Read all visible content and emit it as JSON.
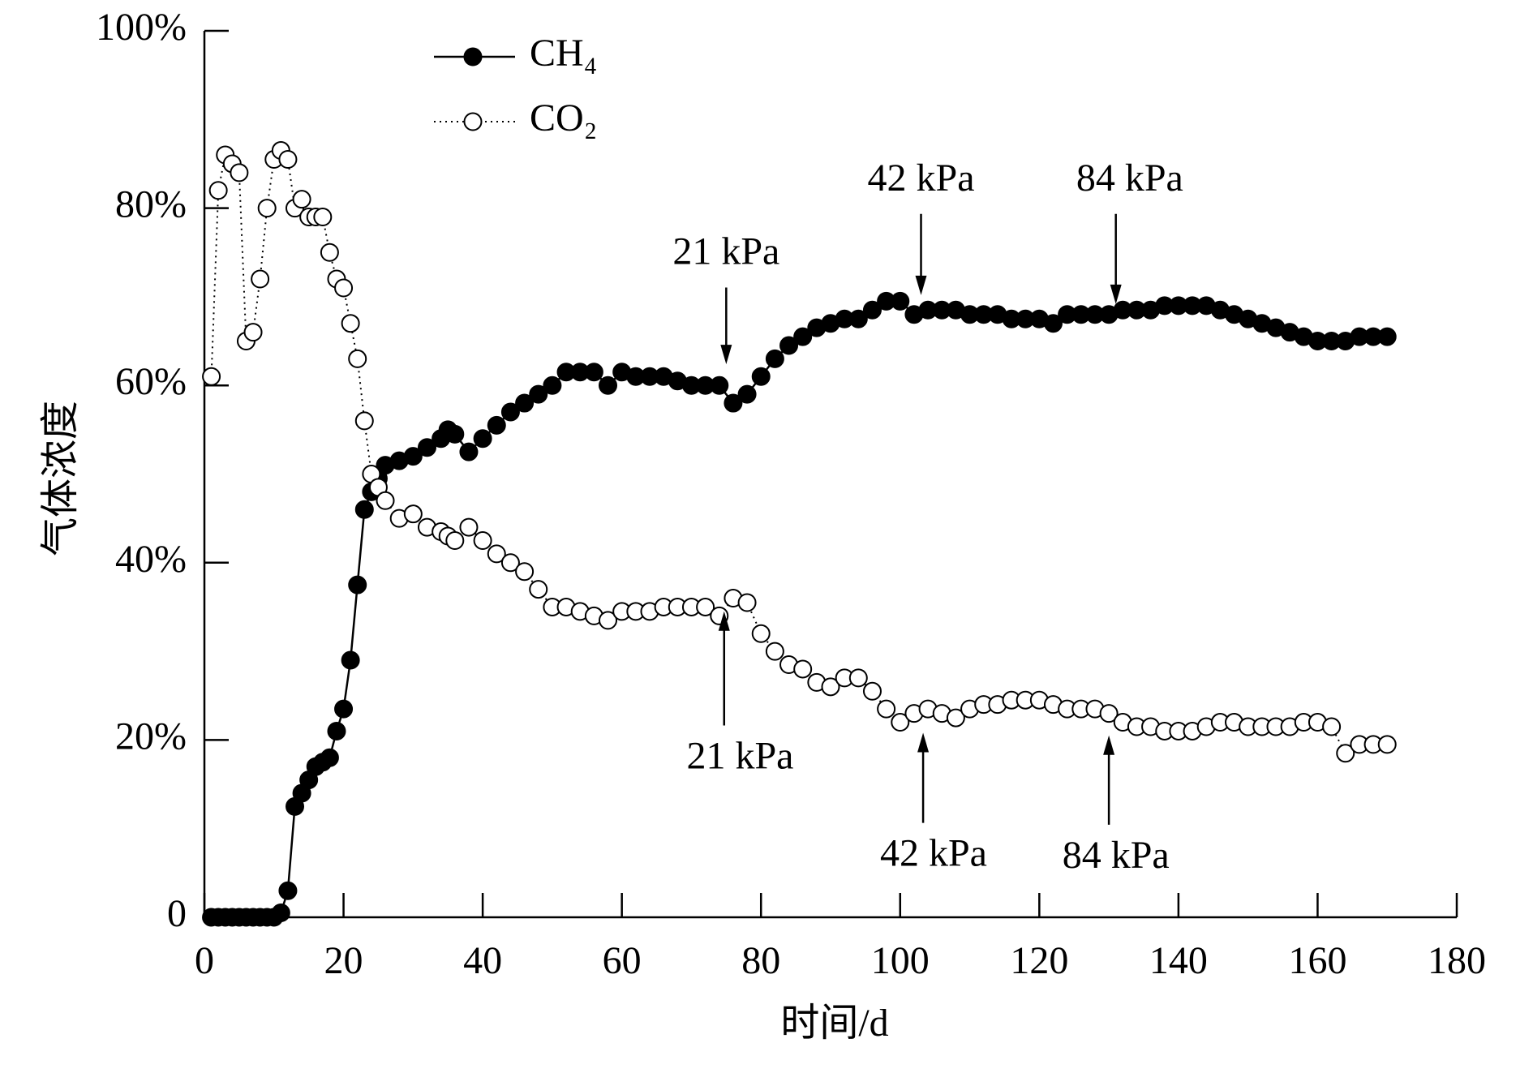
{
  "chart_data": {
    "type": "line",
    "xlabel": "时间/d",
    "ylabel": "气体浓度",
    "x": [
      1,
      2,
      3,
      4,
      5,
      6,
      7,
      8,
      9,
      10,
      11,
      12,
      13,
      14,
      15,
      16,
      17,
      18,
      19,
      20,
      21,
      22,
      23,
      24,
      25,
      26,
      28,
      30,
      32,
      34,
      35,
      36,
      38,
      40,
      42,
      44,
      46,
      48,
      50,
      52,
      54,
      56,
      58,
      60,
      62,
      64,
      66,
      68,
      70,
      72,
      74,
      76,
      78,
      80,
      82,
      84,
      86,
      88,
      90,
      92,
      94,
      96,
      98,
      100,
      102,
      104,
      106,
      108,
      110,
      112,
      114,
      116,
      118,
      120,
      122,
      124,
      126,
      128,
      130,
      132,
      134,
      136,
      138,
      140,
      142,
      144,
      146,
      148,
      150,
      152,
      154,
      156,
      158,
      160,
      162,
      164,
      166,
      168,
      170
    ],
    "series": [
      {
        "name": "CH₄",
        "color": "#000000",
        "marker_fill": "#000000",
        "linestyle": "solid",
        "values": [
          0,
          0,
          0,
          0,
          0,
          0,
          0,
          0,
          0,
          0,
          0.5,
          3,
          12.5,
          14,
          15.5,
          17,
          17.5,
          18,
          21,
          23.5,
          29,
          37.5,
          46,
          48,
          49.5,
          51,
          51.5,
          52,
          53,
          54,
          55,
          54.5,
          52.5,
          54,
          55.5,
          57,
          58,
          59,
          60,
          61.5,
          61.5,
          61.5,
          60,
          61.5,
          61,
          61,
          61,
          60.5,
          60,
          60,
          60,
          58,
          59,
          61,
          63,
          64.5,
          65.5,
          66.5,
          67,
          67.5,
          67.5,
          68.5,
          69.5,
          69.5,
          68,
          68.5,
          68.5,
          68.5,
          68,
          68,
          68,
          67.5,
          67.5,
          67.5,
          67,
          68,
          68,
          68,
          68,
          68.5,
          68.5,
          68.5,
          69,
          69,
          69,
          69,
          68.5,
          68,
          67.5,
          67,
          66.5,
          66,
          65.5,
          65,
          65,
          65,
          65.5,
          65.5,
          65.5
        ]
      },
      {
        "name": "CO₂",
        "color": "#000000",
        "marker_fill": "#ffffff",
        "linestyle": "dotted",
        "values": [
          61,
          82,
          86,
          85,
          84,
          65,
          66,
          72,
          80,
          85.5,
          86.5,
          85.5,
          80,
          81,
          79,
          79,
          79,
          75,
          72,
          71,
          67,
          63,
          56,
          50,
          48.5,
          47,
          45,
          45.5,
          44,
          43.5,
          43,
          42.5,
          44,
          42.5,
          41,
          40,
          39,
          37,
          35,
          35,
          34.5,
          34,
          33.5,
          34.5,
          34.5,
          34.5,
          35,
          35,
          35,
          35,
          34,
          36,
          35.5,
          32,
          30,
          28.5,
          28,
          26.5,
          26,
          27,
          27,
          25.5,
          23.5,
          22,
          23,
          23.5,
          23,
          22.5,
          23.5,
          24,
          24,
          24.5,
          24.5,
          24.5,
          24,
          23.5,
          23.5,
          23.5,
          23,
          22,
          21.5,
          21.5,
          21,
          21,
          21,
          21.5,
          22,
          22,
          21.5,
          21.5,
          21.5,
          21.5,
          22,
          22,
          21.5,
          18.5,
          19.5,
          19.5,
          19.5
        ]
      }
    ],
    "xlim": [
      0,
      180
    ],
    "xticks": [
      0,
      20,
      40,
      60,
      80,
      100,
      120,
      140,
      160,
      180
    ],
    "ylim": [
      0,
      100
    ],
    "yticks": [
      0,
      {
        "value": 20,
        "label": "20%"
      },
      {
        "value": 40,
        "label": "40%"
      },
      {
        "value": 60,
        "label": "60%"
      },
      {
        "value": 80,
        "label": "80%"
      },
      {
        "value": 100,
        "label": "100%"
      }
    ],
    "legend": "upper left",
    "annotations": [
      {
        "text": "21 kPa",
        "x": 75,
        "y": 62.2,
        "text_x": 75,
        "text_y": 74.7
      },
      {
        "text": "42 kPa",
        "x": 103,
        "y": 70,
        "text_x": 103,
        "text_y": 83
      },
      {
        "text": "84 kPa",
        "x": 131,
        "y": 69,
        "text_x": 133,
        "text_y": 83
      },
      {
        "text": "21 kPa",
        "x": 74.7,
        "y": 34.7,
        "text_x": 77,
        "text_y": 17.8
      },
      {
        "text": "42 kPa",
        "x": 103.3,
        "y": 21,
        "text_x": 104.8,
        "text_y": 6.8
      },
      {
        "text": "84 kPa",
        "x": 130,
        "y": 20.7,
        "text_x": 131,
        "text_y": 6.6
      }
    ]
  }
}
